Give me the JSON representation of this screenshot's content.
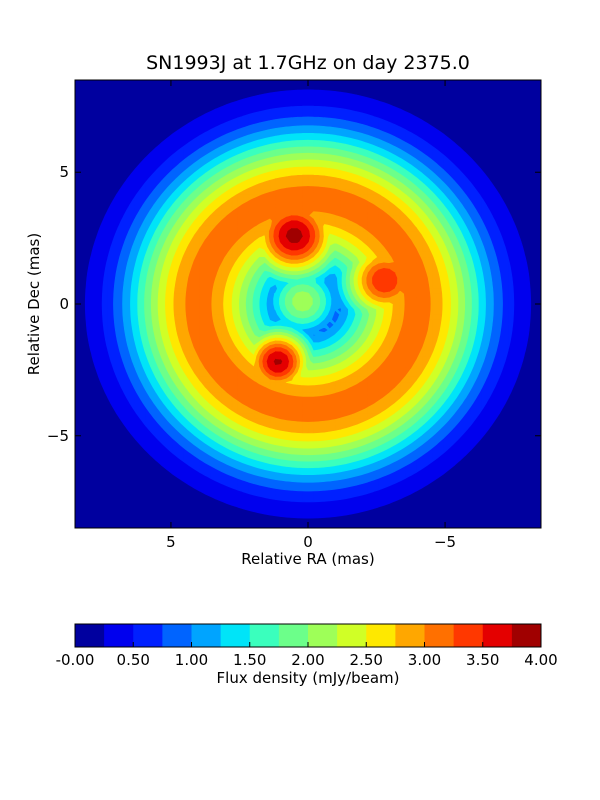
{
  "chart_data": {
    "type": "heatmap",
    "title": "SN1993J at 1.7GHz on day 2375.0",
    "xlabel": "Relative RA (mas)",
    "ylabel": "Relative Dec (mas)",
    "xlim": [
      8.5,
      -8.5
    ],
    "ylim": [
      -8.5,
      8.5
    ],
    "x_ticks": [
      5,
      0,
      -5
    ],
    "y_ticks": [
      5,
      0,
      -5
    ],
    "x_tick_labels": [
      "5",
      "0",
      "−5"
    ],
    "y_tick_labels": [
      "5",
      "0",
      "−5"
    ],
    "colorbar": {
      "label": "Flux density (mJy/beam)",
      "orientation": "horizontal",
      "range": [
        0.0,
        4.0
      ],
      "tick_values": [
        0.0,
        0.5,
        1.0,
        1.5,
        2.0,
        2.5,
        3.0,
        3.5,
        4.0
      ],
      "tick_labels": [
        "-0.00",
        "0.50",
        "1.00",
        "1.50",
        "2.00",
        "2.50",
        "3.00",
        "3.50",
        "4.00"
      ],
      "levels": [
        0.0,
        0.25,
        0.5,
        0.75,
        1.0,
        1.25,
        1.5,
        1.75,
        2.0,
        2.25,
        2.5,
        2.75,
        3.0,
        3.25,
        3.5,
        3.75,
        4.0
      ],
      "colors": [
        "#00009f",
        "#0000ee",
        "#0020ff",
        "#0064ff",
        "#00a4ff",
        "#00e4f8",
        "#3affbd",
        "#6cff8a",
        "#9eff58",
        "#d0ff26",
        "#fee800",
        "#ffa700",
        "#ff7000",
        "#ff3800",
        "#e40000",
        "#a00000"
      ]
    },
    "components": [
      {
        "name": "ring",
        "ra": 0.0,
        "dec": 0.0,
        "peak": 3.1,
        "shape": "shell",
        "radius": 4.0,
        "width": 2.6
      },
      {
        "name": "north-east knot",
        "ra": 0.5,
        "dec": 2.6,
        "peak": 3.85,
        "sigma": 1.3
      },
      {
        "name": "south-east knot",
        "ra": 1.1,
        "dec": -2.2,
        "peak": 3.8,
        "sigma": 1.0
      },
      {
        "name": "west knot",
        "ra": -2.8,
        "dec": 0.9,
        "peak": 3.5,
        "sigma": 1.2
      },
      {
        "name": "center dip",
        "ra": 0.2,
        "dec": 0.1,
        "peak": 2.15,
        "sigma": 1.0
      }
    ]
  }
}
